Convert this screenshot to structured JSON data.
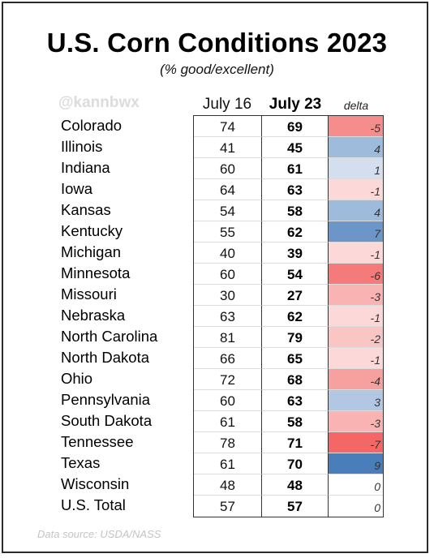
{
  "title": "U.S. Corn Conditions 2023",
  "subtitle": "(% good/excellent)",
  "watermark": "@kannbwx",
  "source": "Data source: USDA/NASS",
  "colors": {
    "positive": "#4a7ebb",
    "negative": "#f25a5a",
    "zero": "#ffffff"
  },
  "chart_data": {
    "type": "table",
    "title": "U.S. Corn Conditions 2023",
    "subtitle": "(% good/excellent)",
    "columns": [
      "July 16",
      "July 23",
      "delta"
    ],
    "rows": [
      {
        "state": "Colorado",
        "jul16": "74",
        "jul23": "69",
        "delta": "-5"
      },
      {
        "state": "Illinois",
        "jul16": "41",
        "jul23": "45",
        "delta": "4"
      },
      {
        "state": "Indiana",
        "jul16": "60",
        "jul23": "61",
        "delta": "1"
      },
      {
        "state": "Iowa",
        "jul16": "64",
        "jul23": "63",
        "delta": "-1"
      },
      {
        "state": "Kansas",
        "jul16": "54",
        "jul23": "58",
        "delta": "4"
      },
      {
        "state": "Kentucky",
        "jul16": "55",
        "jul23": "62",
        "delta": "7"
      },
      {
        "state": "Michigan",
        "jul16": "40",
        "jul23": "39",
        "delta": "-1"
      },
      {
        "state": "Minnesota",
        "jul16": "60",
        "jul23": "54",
        "delta": "-6"
      },
      {
        "state": "Missouri",
        "jul16": "30",
        "jul23": "27",
        "delta": "-3"
      },
      {
        "state": "Nebraska",
        "jul16": "63",
        "jul23": "62",
        "delta": "-1"
      },
      {
        "state": "North Carolina",
        "jul16": "81",
        "jul23": "79",
        "delta": "-2"
      },
      {
        "state": "North Dakota",
        "jul16": "66",
        "jul23": "65",
        "delta": "-1"
      },
      {
        "state": "Ohio",
        "jul16": "72",
        "jul23": "68",
        "delta": "-4"
      },
      {
        "state": "Pennsylvania",
        "jul16": "60",
        "jul23": "63",
        "delta": "3"
      },
      {
        "state": "South Dakota",
        "jul16": "61",
        "jul23": "58",
        "delta": "-3"
      },
      {
        "state": "Tennessee",
        "jul16": "78",
        "jul23": "71",
        "delta": "-7"
      },
      {
        "state": "Texas",
        "jul16": "61",
        "jul23": "70",
        "delta": "9"
      },
      {
        "state": "Wisconsin",
        "jul16": "48",
        "jul23": "48",
        "delta": "0"
      },
      {
        "state": "U.S. Total",
        "jul16": "57",
        "jul23": "57",
        "delta": "0"
      }
    ]
  }
}
